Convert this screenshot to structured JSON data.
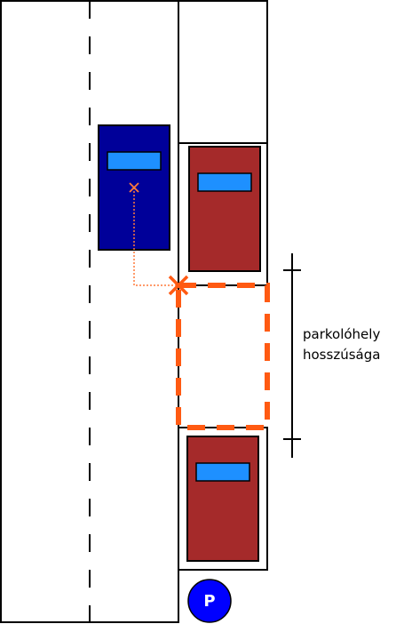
{
  "colors": {
    "lines": "#000000",
    "moving_car": "#000099",
    "parked_car": "#a52a2a",
    "windshield": "#1e90ff",
    "parking_spot_outline": "#ff5a12",
    "trajectory": "#ff7a3a",
    "parking_sign": "#0000ff"
  },
  "annotation": {
    "line1": "parkolóhely",
    "line2": "hosszúsága"
  },
  "parking_sign": {
    "icon": "parking-sign-icon",
    "letter": "P"
  }
}
